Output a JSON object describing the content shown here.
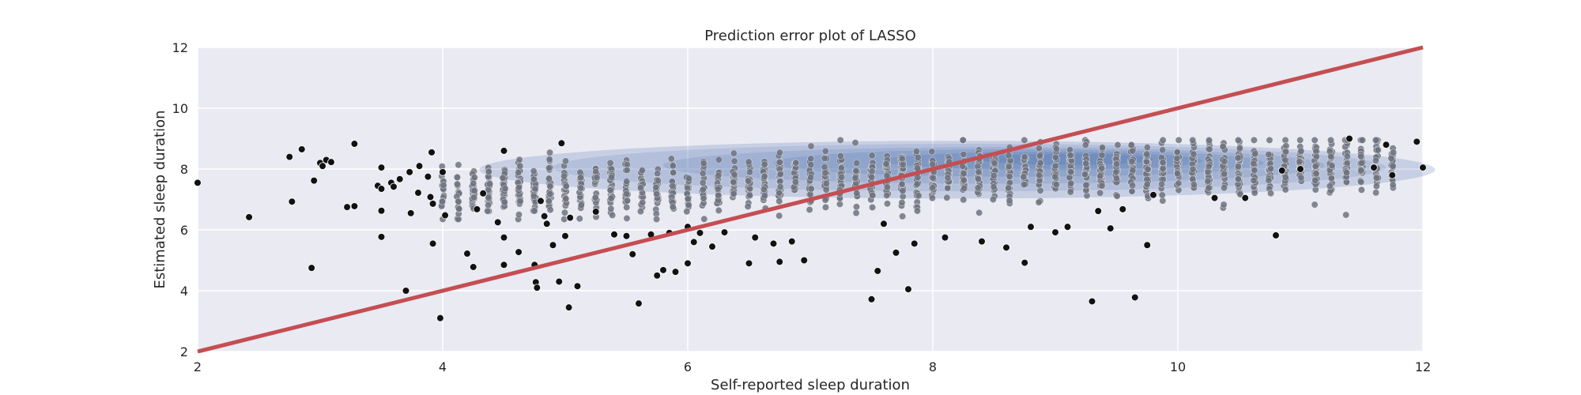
{
  "chart_data": {
    "type": "scatter",
    "title": "Prediction error plot of LASSO",
    "xlabel": "Self-reported sleep duration",
    "ylabel": "Estimated sleep duration",
    "xlim": [
      2,
      12
    ],
    "ylim": [
      2,
      12
    ],
    "xticks": [
      "2",
      "4",
      "6",
      "8",
      "10",
      "12"
    ],
    "yticks": [
      "2",
      "4",
      "6",
      "8",
      "10",
      "12"
    ],
    "grid": true,
    "colors": {
      "background": "#eaeaf2",
      "grid": "#ffffff",
      "identity_line": "#c44e52",
      "points": "#111111",
      "dense_points": "#6f7380",
      "density": "#4c72b0"
    },
    "identity_line": {
      "x": [
        2,
        12
      ],
      "y": [
        2,
        12
      ]
    },
    "density_region": {
      "x_range": [
        4,
        11.8
      ],
      "y_center": 8.0,
      "peak": [
        8.9,
        8.3
      ]
    },
    "outlier_points": {
      "x": [
        2.0,
        2.42,
        2.75,
        2.77,
        2.85,
        2.93,
        2.95,
        3.0,
        3.02,
        3.05,
        3.09,
        3.22,
        3.28,
        3.28,
        3.47,
        3.5,
        3.5,
        3.5,
        3.5,
        3.58,
        3.6,
        3.65,
        3.7,
        3.73,
        3.74,
        3.8,
        3.81,
        3.88,
        3.9,
        3.91,
        3.92,
        3.92,
        3.98,
        4.0,
        4.02,
        4.2,
        4.25,
        4.28,
        4.33,
        4.45,
        4.5,
        4.5,
        4.5,
        4.62,
        4.75,
        4.76,
        4.77,
        4.8,
        4.83,
        4.85,
        4.9,
        4.95,
        4.97,
        5.0,
        5.03,
        5.04,
        5.1,
        5.25,
        5.4,
        5.5,
        5.55,
        5.6,
        5.7,
        5.75,
        5.8,
        5.85,
        5.9,
        6.0,
        6.0,
        6.05,
        6.1,
        6.2,
        6.3,
        6.5,
        6.55,
        6.7,
        6.75,
        6.85,
        6.95,
        7.5,
        7.55,
        7.6,
        7.7,
        7.8,
        7.85,
        8.1,
        8.4,
        8.6,
        8.75,
        8.8,
        9.0,
        9.1,
        9.3,
        9.35,
        9.45,
        9.55,
        9.65,
        9.75,
        9.8,
        10.3,
        10.55,
        10.8,
        10.85,
        11.0,
        11.4,
        11.6,
        11.7,
        11.75,
        11.95,
        12.0
      ],
      "y": [
        7.55,
        6.42,
        8.4,
        6.93,
        8.65,
        4.75,
        7.62,
        8.2,
        8.1,
        8.3,
        8.23,
        6.75,
        8.83,
        6.78,
        7.45,
        7.35,
        8.05,
        6.63,
        5.77,
        7.55,
        7.42,
        7.67,
        4.0,
        7.9,
        6.55,
        7.22,
        8.1,
        7.75,
        7.08,
        8.55,
        6.86,
        5.55,
        3.1,
        7.9,
        6.48,
        5.22,
        4.78,
        6.68,
        7.2,
        6.25,
        5.75,
        8.6,
        4.85,
        5.27,
        4.85,
        4.28,
        4.1,
        6.95,
        6.45,
        6.2,
        5.5,
        4.3,
        8.85,
        5.8,
        3.45,
        6.4,
        4.15,
        6.6,
        5.85,
        5.8,
        5.2,
        3.58,
        5.85,
        4.5,
        4.68,
        5.9,
        4.62,
        4.9,
        6.1,
        5.6,
        5.9,
        5.45,
        5.92,
        4.9,
        5.75,
        5.55,
        4.95,
        5.62,
        5.0,
        3.72,
        4.65,
        6.2,
        5.25,
        4.05,
        5.55,
        5.75,
        5.62,
        5.42,
        4.92,
        6.1,
        5.92,
        6.1,
        3.65,
        6.62,
        6.05,
        6.68,
        3.78,
        5.5,
        7.15,
        7.05,
        7.05,
        5.82,
        7.95,
        8.0,
        9.0,
        8.05,
        8.8,
        7.8,
        8.9,
        8.05
      ]
    }
  }
}
